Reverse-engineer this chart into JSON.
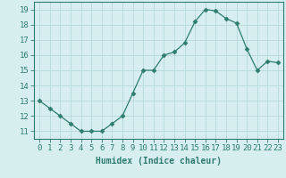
{
  "x": [
    0,
    1,
    2,
    3,
    4,
    5,
    6,
    7,
    8,
    9,
    10,
    11,
    12,
    13,
    14,
    15,
    16,
    17,
    18,
    19,
    20,
    21,
    22,
    23
  ],
  "y": [
    13.0,
    12.5,
    12.0,
    11.5,
    11.0,
    11.0,
    11.0,
    11.5,
    12.0,
    13.5,
    15.0,
    15.0,
    16.0,
    16.2,
    16.8,
    18.2,
    19.0,
    18.9,
    18.4,
    18.1,
    16.4,
    15.0,
    15.6,
    15.5
  ],
  "line_color": "#2e7d6e",
  "marker": "D",
  "marker_size": 2.5,
  "bg_color": "#d6eeee",
  "grid_color": "#b8d8d8",
  "xlabel": "Humidex (Indice chaleur)",
  "xlim": [
    -0.5,
    23.5
  ],
  "ylim": [
    10.5,
    19.5
  ],
  "yticks": [
    11,
    12,
    13,
    14,
    15,
    16,
    17,
    18,
    19
  ],
  "xtick_labels": [
    "0",
    "1",
    "2",
    "3",
    "4",
    "5",
    "6",
    "7",
    "8",
    "9",
    "10",
    "11",
    "12",
    "13",
    "14",
    "15",
    "16",
    "17",
    "18",
    "19",
    "20",
    "21",
    "22",
    "23"
  ],
  "xlabel_fontsize": 7,
  "tick_fontsize": 6.5
}
